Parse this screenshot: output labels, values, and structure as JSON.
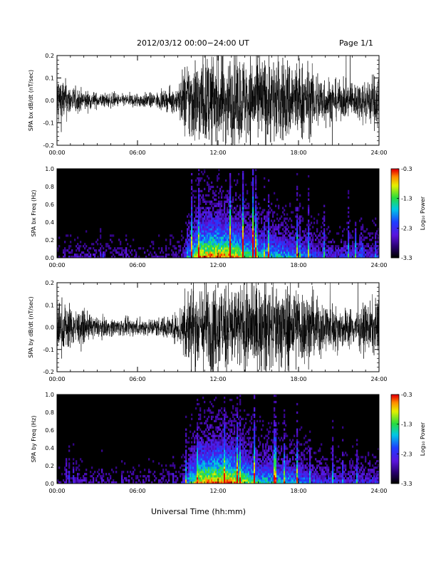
{
  "header": {
    "title": "2012/03/12  00:00−24:00 UT",
    "page": "Page 1/1"
  },
  "footer": {
    "xlabel": "Universal Time (hh:mm)"
  },
  "chart_data": [
    {
      "type": "line",
      "ylabel": "SPA bx dB/dt (nT/sec)",
      "xlim": [
        0,
        24
      ],
      "ylim": [
        -0.2,
        0.2
      ],
      "xticks": [
        "00:00",
        "06:00",
        "12:00",
        "18:00",
        "24:00"
      ],
      "yticks": [
        "-0.2",
        "-0.1",
        "0.0",
        "0.1",
        "0.2"
      ],
      "grid": false,
      "series": [
        {
          "x": [
            0,
            1,
            2,
            3,
            4,
            5,
            6,
            7,
            8,
            9,
            9.5,
            10,
            12,
            14,
            16,
            18,
            19.5,
            21,
            22,
            23,
            24
          ],
          "y_amplitude": [
            0.2,
            0.1,
            0.07,
            0.05,
            0.05,
            0.04,
            0.05,
            0.05,
            0.06,
            0.09,
            0.25,
            0.3,
            0.3,
            0.3,
            0.3,
            0.28,
            0.2,
            0.12,
            0.12,
            0.15,
            0.2
          ]
        }
      ]
    },
    {
      "type": "heatmap",
      "ylabel": "SPA bx Freq (Hz)",
      "xlim": [
        0,
        24
      ],
      "ylim": [
        0,
        1.0
      ],
      "xticks": [
        "00:00",
        "06:00",
        "12:00",
        "18:00",
        "24:00"
      ],
      "yticks": [
        "0.0",
        "0.2",
        "0.4",
        "0.6",
        "0.8",
        "1.0"
      ],
      "colorbar": {
        "label": "Log₁₀ Power",
        "ticks": [
          "-0.3",
          "-1.3",
          "-2.3",
          "-3.3"
        ],
        "range": [
          -3.3,
          -0.3
        ]
      }
    },
    {
      "type": "line",
      "ylabel": "SPA by dB/dt (nT/sec)",
      "xlim": [
        0,
        24
      ],
      "ylim": [
        -0.2,
        0.2
      ],
      "xticks": [
        "00:00",
        "06:00",
        "12:00",
        "18:00",
        "24:00"
      ],
      "yticks": [
        "-0.2",
        "-0.1",
        "0.0",
        "0.1",
        "0.2"
      ],
      "grid": false,
      "series": [
        {
          "x": [
            0,
            1,
            2,
            3,
            4,
            5,
            6,
            7,
            8,
            9,
            9.5,
            10,
            12,
            14,
            16,
            18,
            19.5,
            21,
            22,
            23,
            24
          ],
          "y_amplitude": [
            0.2,
            0.14,
            0.1,
            0.07,
            0.06,
            0.06,
            0.06,
            0.06,
            0.07,
            0.1,
            0.25,
            0.3,
            0.3,
            0.3,
            0.3,
            0.28,
            0.2,
            0.14,
            0.13,
            0.15,
            0.2
          ]
        }
      ]
    },
    {
      "type": "heatmap",
      "ylabel": "SPA by Freq (Hz)",
      "xlim": [
        0,
        24
      ],
      "ylim": [
        0,
        1.0
      ],
      "xticks": [
        "00:00",
        "06:00",
        "12:00",
        "18:00",
        "24:00"
      ],
      "yticks": [
        "0.0",
        "0.2",
        "0.4",
        "0.6",
        "0.8",
        "1.0"
      ],
      "colorbar": {
        "label": "Log₁₀ Power",
        "ticks": [
          "-0.3",
          "-1.3",
          "-2.3",
          "-3.3"
        ],
        "range": [
          -3.3,
          -0.3
        ]
      }
    }
  ]
}
